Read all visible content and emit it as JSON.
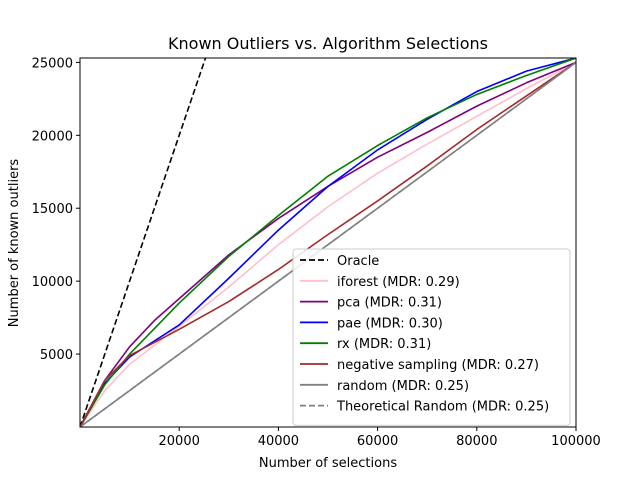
{
  "chart_data": {
    "type": "line",
    "title": "Known Outliers vs. Algorithm Selections",
    "xlabel": "Number of selections",
    "ylabel": "Number of known outliers",
    "xlim": [
      0,
      100000
    ],
    "ylim": [
      0,
      25300
    ],
    "xticks": [
      20000,
      40000,
      60000,
      80000,
      100000
    ],
    "yticks": [
      5000,
      10000,
      15000,
      20000,
      25000
    ],
    "grid": false,
    "legend_position": "lower-right",
    "series": [
      {
        "name": "Oracle",
        "color": "#000000",
        "dash": "dashed",
        "x": [
          0,
          25300
        ],
        "y": [
          0,
          25300
        ]
      },
      {
        "name": "iforest (MDR: 0.29)",
        "color": "#ffc0cb",
        "dash": "solid",
        "x": [
          0,
          5000,
          10000,
          20000,
          30000,
          40000,
          50000,
          60000,
          70000,
          80000,
          90000,
          100000
        ],
        "y": [
          0,
          2500,
          4300,
          6900,
          9600,
          12500,
          15100,
          17400,
          19400,
          21300,
          23200,
          25000
        ]
      },
      {
        "name": "pca (MDR: 0.31)",
        "color": "#800080",
        "dash": "solid",
        "x": [
          0,
          5000,
          10000,
          15000,
          20000,
          30000,
          40000,
          50000,
          60000,
          70000,
          80000,
          90000,
          100000
        ],
        "y": [
          0,
          3200,
          5500,
          7300,
          8800,
          11800,
          14300,
          16500,
          18500,
          20200,
          22000,
          23600,
          25000
        ]
      },
      {
        "name": "pae (MDR: 0.30)",
        "color": "#0000ff",
        "dash": "solid",
        "x": [
          0,
          5000,
          10000,
          20000,
          30000,
          40000,
          50000,
          60000,
          70000,
          80000,
          90000,
          100000
        ],
        "y": [
          0,
          3000,
          4800,
          7000,
          10200,
          13500,
          16500,
          19000,
          21100,
          23000,
          24400,
          25300
        ]
      },
      {
        "name": "rx (MDR: 0.31)",
        "color": "#008000",
        "dash": "solid",
        "x": [
          0,
          5000,
          10000,
          20000,
          30000,
          40000,
          50000,
          60000,
          70000,
          80000,
          90000,
          100000
        ],
        "y": [
          0,
          2900,
          5000,
          8500,
          11700,
          14500,
          17200,
          19300,
          21200,
          22800,
          24100,
          25300
        ]
      },
      {
        "name": "negative sampling (MDR: 0.27)",
        "color": "#a52a2a",
        "dash": "solid",
        "x": [
          0,
          5000,
          10000,
          20000,
          30000,
          40000,
          50000,
          60000,
          70000,
          80000,
          90000,
          100000
        ],
        "y": [
          0,
          3200,
          4900,
          6700,
          8600,
          10800,
          13200,
          15500,
          17900,
          20400,
          22700,
          25000
        ]
      },
      {
        "name": "random (MDR: 0.25)",
        "color": "#808080",
        "dash": "solid",
        "x": [
          0,
          100000
        ],
        "y": [
          0,
          25000
        ]
      },
      {
        "name": "Theoretical Random (MDR: 0.25)",
        "color": "#808080",
        "dash": "dashed",
        "x": [
          0,
          100000
        ],
        "y": [
          0,
          25000
        ]
      }
    ]
  }
}
